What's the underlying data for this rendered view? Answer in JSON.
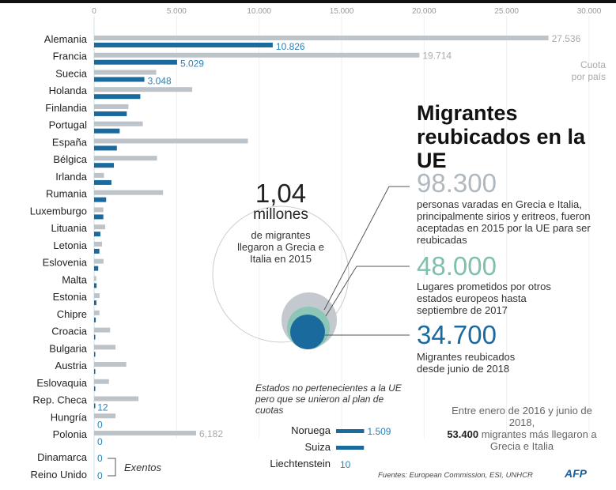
{
  "chart_data": {
    "type": "bar",
    "title": "Migrantes reubicados en la UE",
    "xlim": [
      0,
      30000
    ],
    "ticks": [
      "0",
      "5.000",
      "10.000",
      "15.000",
      "20.000",
      "25.000",
      "30.000"
    ],
    "tick_values": [
      0,
      5000,
      10000,
      15000,
      20000,
      25000,
      30000
    ],
    "grid": true,
    "legend_quota": "Cuota por país",
    "categories": [
      "Alemania",
      "Francia",
      "Suecia",
      "Holanda",
      "Finlandia",
      "Portugal",
      "España",
      "Bélgica",
      "Irlanda",
      "Rumania",
      "Luxemburgo",
      "Lituania",
      "Letonia",
      "Eslovenia",
      "Malta",
      "Estonia",
      "Chipre",
      "Croacia",
      "Bulgaria",
      "Austria",
      "Eslovaquia",
      "Rep. Checa",
      "Hungría",
      "Polonia"
    ],
    "series": [
      {
        "name": "Cuota por país",
        "color": "#bcc3c9",
        "values": [
          27536,
          19714,
          3766,
          5947,
          2078,
          2951,
          9323,
          3812,
          600,
          4180,
          560,
          670,
          480,
          570,
          130,
          330,
          320,
          970,
          1300,
          1950,
          900,
          2690,
          1300,
          6182
        ],
        "labels": [
          "27.536",
          "19.714",
          "",
          "",
          "",
          "",
          "",
          "",
          "",
          "",
          "",
          "",
          "",
          "",
          "",
          "",
          "",
          "",
          "",
          "",
          "",
          "",
          "",
          "6,182"
        ]
      },
      {
        "name": "Migrantes reubicados",
        "color": "#1a6a9e",
        "values": [
          10826,
          5029,
          3048,
          2800,
          1980,
          1550,
          1380,
          1200,
          1050,
          730,
          560,
          380,
          320,
          250,
          150,
          140,
          100,
          60,
          50,
          40,
          16,
          12,
          0,
          0
        ],
        "labels": [
          "10.826",
          "5.029",
          "3.048",
          "",
          "",
          "",
          "",
          "",
          "",
          "",
          "",
          "",
          "",
          "",
          "",
          "",
          "",
          "",
          "",
          "",
          "",
          "12",
          "0",
          "0"
        ]
      }
    ],
    "exempt": {
      "categories": [
        "Dinamarca",
        "Reino Unido"
      ],
      "labels": [
        "0",
        "0"
      ],
      "note": "Exentos"
    },
    "non_eu": {
      "title": "Estados no pertenecientes a la UE pero que se unieron al plan de cuotas",
      "categories": [
        "Noruega",
        "Suiza",
        "Liechtenstein"
      ],
      "values": [
        1509,
        1500,
        10
      ],
      "labels": [
        "1.509",
        "",
        "10"
      ]
    }
  },
  "circle": {
    "number": "1,04",
    "unit": "millones",
    "desc": "de migrantes llegaron a Grecia e Italia en 2015"
  },
  "title": "Migrantes reubicados en la UE",
  "stats": [
    {
      "value": "98.300",
      "color": "#b0b8be",
      "desc": "personas varadas en Grecia e Italia, principalmente sirios y eritreos, fueron aceptadas en 2015 por la UE para ser reubicadas"
    },
    {
      "value": "48.000",
      "color": "#7fbfae",
      "desc": "Lugares prometidos por otros estados europeos hasta septiembre de 2017"
    },
    {
      "value": "34.700",
      "color": "#1a6a9e",
      "desc": "Migrantes reubicados desde  junio de 2018"
    }
  ],
  "note": {
    "pre": "Entre enero de 2016 y junio de 2018,",
    "bold": "53.400",
    "post": "migrantes más llegaron a Grecia e Italia"
  },
  "source": "Fuentes: European Commission, ESI, UNHCR",
  "logo": "© AFP"
}
